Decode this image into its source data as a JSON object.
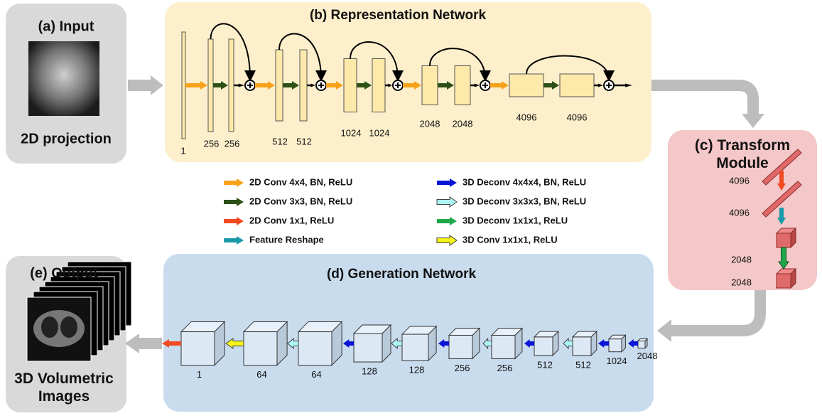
{
  "input": {
    "title": "(a) Input",
    "caption": "2D projection"
  },
  "representation_network": {
    "title": "(b) Representation Network",
    "labels": [
      "1",
      "256",
      "256",
      "512",
      "512",
      "1024",
      "1024",
      "2048",
      "2048",
      "4096",
      "4096"
    ]
  },
  "transform_module": {
    "title": "(c) Transform Module",
    "labels": [
      "4096",
      "4096",
      "2048",
      "2048"
    ]
  },
  "legend": {
    "items": [
      "2D Conv 4x4, BN, ReLU",
      "2D Conv 3x3, BN, ReLU",
      "2D Conv 1x1, ReLU",
      "Feature Reshape",
      "3D Deconv 4x4x4, BN, ReLU",
      "3D Deconv 3x3x3, BN, ReLU",
      "3D Deconv 1x1x1, ReLU",
      "3D Conv 1x1x1, ReLU"
    ]
  },
  "generation_network": {
    "title": "(d) Generation Network",
    "labels": [
      "1",
      "64",
      "64",
      "128",
      "128",
      "256",
      "256",
      "512",
      "512",
      "1024",
      "2048"
    ]
  },
  "output": {
    "title": "(e) Output",
    "caption": "3D Volumetric Images"
  }
}
